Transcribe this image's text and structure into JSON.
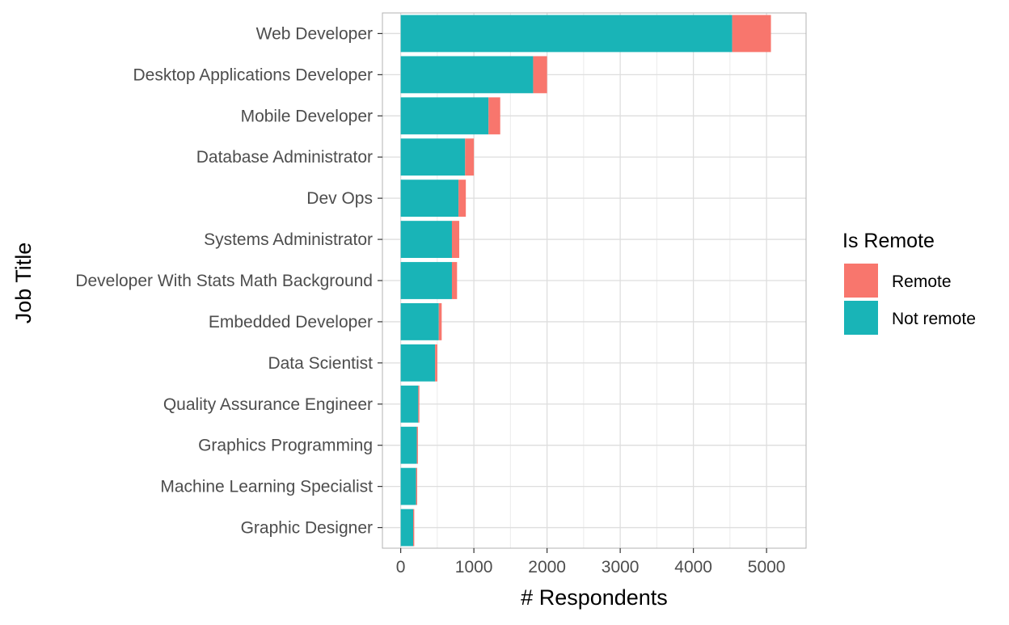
{
  "chart_data": {
    "type": "bar",
    "orientation": "horizontal",
    "stacked": true,
    "title": "",
    "xlabel": "# Respondents",
    "ylabel": "Job Title",
    "xlim": [
      -250,
      5540
    ],
    "xticks": [
      0,
      1000,
      2000,
      3000,
      4000,
      5000
    ],
    "grid": true,
    "legend": {
      "title": "Is Remote",
      "position": "right",
      "entries": [
        {
          "label": "Remote",
          "color": "#F8766D"
        },
        {
          "label": "Not remote",
          "color": "#19B4B7"
        }
      ]
    },
    "categories": [
      "Web Developer",
      "Desktop Applications Developer",
      "Mobile Developer",
      "Database Administrator",
      "Dev Ops",
      "Systems Administrator",
      "Developer With Stats Math Background",
      "Embedded Developer",
      "Data Scientist",
      "Quality Assurance Engineer",
      "Graphics Programming",
      "Machine Learning Specialist",
      "Graphic Designer"
    ],
    "series": [
      {
        "name": "Not remote",
        "color": "#19B4B7",
        "values": [
          4530,
          1810,
          1200,
          880,
          790,
          700,
          700,
          520,
          470,
          240,
          220,
          210,
          170
        ]
      },
      {
        "name": "Remote",
        "color": "#F8766D",
        "values": [
          530,
          190,
          160,
          120,
          100,
          100,
          70,
          40,
          30,
          15,
          15,
          15,
          15
        ]
      }
    ]
  }
}
